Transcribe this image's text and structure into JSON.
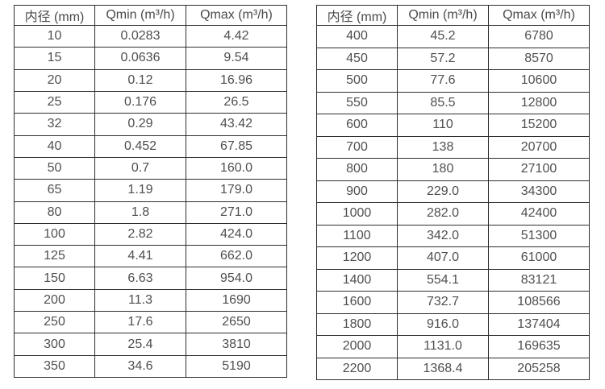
{
  "page": {
    "background_color": "#ffffff",
    "border_color": "#2e2e2e",
    "text_color": "#4f4f4f"
  },
  "tables": [
    {
      "name": "flow-rate-table-small-diameters",
      "headers": [
        "内径 (mm)",
        "Qmin (m³/h)",
        "Qmax (m³/h)"
      ],
      "rows": [
        [
          "10",
          "0.0283",
          "4.42"
        ],
        [
          "15",
          "0.0636",
          "9.54"
        ],
        [
          "20",
          "0.12",
          "16.96"
        ],
        [
          "25",
          "0.176",
          "26.5"
        ],
        [
          "32",
          "0.29",
          "43.42"
        ],
        [
          "40",
          "0.452",
          "67.85"
        ],
        [
          "50",
          "0.7",
          "160.0"
        ],
        [
          "65",
          "1.19",
          "179.0"
        ],
        [
          "80",
          "1.8",
          "271.0"
        ],
        [
          "100",
          "2.82",
          "424.0"
        ],
        [
          "125",
          "4.41",
          "662.0"
        ],
        [
          "150",
          "6.63",
          "954.0"
        ],
        [
          "200",
          "11.3",
          "1690"
        ],
        [
          "250",
          "17.6",
          "2650"
        ],
        [
          "300",
          "25.4",
          "3810"
        ],
        [
          "350",
          "34.6",
          "5190"
        ]
      ]
    },
    {
      "name": "flow-rate-table-large-diameters",
      "headers": [
        "内径 (mm)",
        "Qmin (m³/h)",
        "Qmax (m³/h)"
      ],
      "rows": [
        [
          "400",
          "45.2",
          "6780"
        ],
        [
          "450",
          "57.2",
          "8570"
        ],
        [
          "500",
          "77.6",
          "10600"
        ],
        [
          "550",
          "85.5",
          "12800"
        ],
        [
          "600",
          "110",
          "15200"
        ],
        [
          "700",
          "138",
          "20700"
        ],
        [
          "800",
          "180",
          "27100"
        ],
        [
          "900",
          "229.0",
          "34300"
        ],
        [
          "1000",
          "282.0",
          "42400"
        ],
        [
          "1100",
          "342.0",
          "51300"
        ],
        [
          "1200",
          "407.0",
          "61000"
        ],
        [
          "1400",
          "554.1",
          "83121"
        ],
        [
          "1600",
          "732.7",
          "108566"
        ],
        [
          "1800",
          "916.0",
          "137404"
        ],
        [
          "2000",
          "1131.0",
          "169635"
        ],
        [
          "2200",
          "1368.4",
          "205258"
        ]
      ]
    }
  ]
}
